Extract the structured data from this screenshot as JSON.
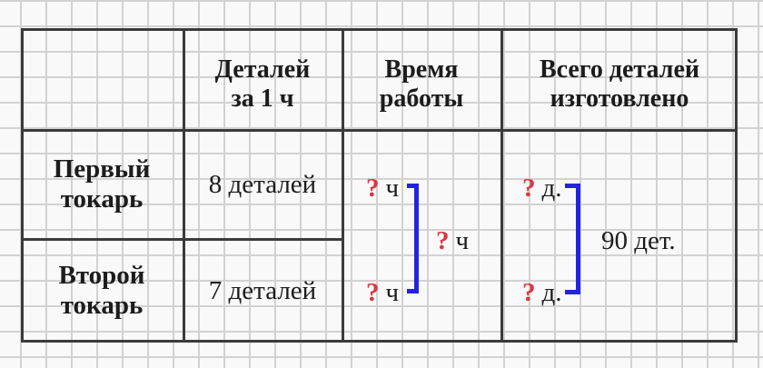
{
  "table": {
    "header": {
      "col1": "",
      "col2_line1": "Деталей",
      "col2_line2": "за 1 ч",
      "col3_line1": "Время",
      "col3_line2": "работы",
      "col4_line1": "Всего деталей",
      "col4_line2": "изготовлено"
    },
    "rows": [
      {
        "label_line1": "Первый",
        "label_line2": "токарь",
        "per_hour": "8 деталей"
      },
      {
        "label_line1": "Второй",
        "label_line2": "токарь",
        "per_hour": "7 деталей"
      }
    ]
  },
  "time_column": {
    "row1_unknown": "?",
    "row1_unit": "ч",
    "row2_unknown": "?",
    "row2_unit": "ч",
    "total_unknown": "?",
    "total_unit": "ч"
  },
  "total_column": {
    "row1_unknown": "?",
    "row1_unit": "д.",
    "row2_unknown": "?",
    "row2_unit": "д.",
    "total": "90 дет."
  },
  "colors": {
    "unknown_mark": "#dd3340",
    "bracket": "#2323e0",
    "table_border": "#3b3b3b",
    "grid_line": "#d2d2d2",
    "paper": "#f9f9f9",
    "text": "#1c1c1c"
  }
}
